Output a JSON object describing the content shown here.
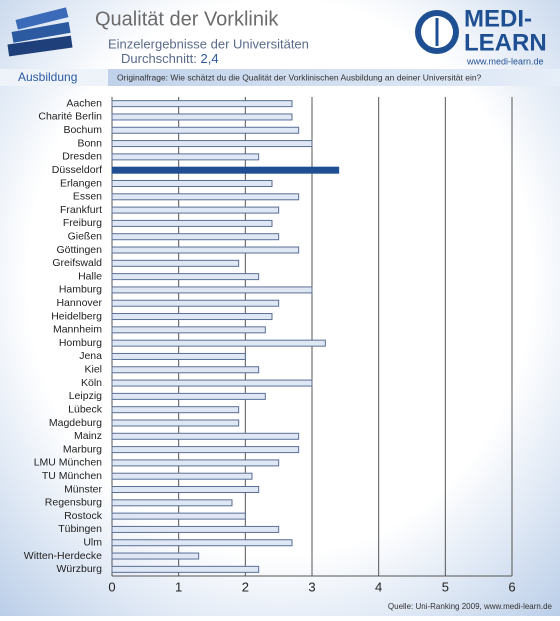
{
  "header": {
    "title": "Qualität der Vorklinik",
    "subtitle": "Einzelergebnisse der Universitäten",
    "average_label": "Durchschnitt:",
    "average": "2,4",
    "logo_line1": "MEDI-",
    "logo_line2": "LEARN",
    "logo_url": "www.medi-learn.de",
    "tab": "Ausbildung",
    "question": "Originalfrage: Wie schätzt du die Qualität der Vorklinischen Ausbildung an deiner Universität ein?"
  },
  "chart_data": {
    "type": "bar",
    "orientation": "horizontal",
    "categories": [
      "Aachen",
      "Charité Berlin",
      "Bochum",
      "Bonn",
      "Dresden",
      "Düsseldorf",
      "Erlangen",
      "Essen",
      "Frankfurt",
      "Freiburg",
      "Gießen",
      "Göttingen",
      "Greifswald",
      "Halle",
      "Hamburg",
      "Hannover",
      "Heidelberg",
      "Mannheim",
      "Homburg",
      "Jena",
      "Kiel",
      "Köln",
      "Leipzig",
      "Lübeck",
      "Magdeburg",
      "Mainz",
      "Marburg",
      "LMU München",
      "TU München",
      "Münster",
      "Regensburg",
      "Rostock",
      "Tübingen",
      "Ulm",
      "Witten-Herdecke",
      "Würzburg"
    ],
    "values": [
      2.7,
      2.7,
      2.8,
      3.0,
      2.2,
      3.4,
      2.4,
      2.8,
      2.5,
      2.4,
      2.5,
      2.8,
      1.9,
      2.2,
      3.0,
      2.5,
      2.4,
      2.3,
      3.2,
      2.0,
      2.2,
      3.0,
      2.3,
      1.9,
      1.9,
      2.8,
      2.8,
      2.5,
      2.1,
      2.2,
      1.8,
      2.0,
      2.5,
      2.7,
      1.3,
      2.2
    ],
    "color": "#dfe7f4",
    "highlight_color": "#1f4f93",
    "highlight_category": "Düsseldorf",
    "xlim": [
      0,
      6
    ],
    "xticks": [
      0,
      1,
      2,
      3,
      4,
      5,
      6
    ],
    "grid": true,
    "source": "Quelle: Uni-Ranking 2009, www.medi-learn.de"
  }
}
